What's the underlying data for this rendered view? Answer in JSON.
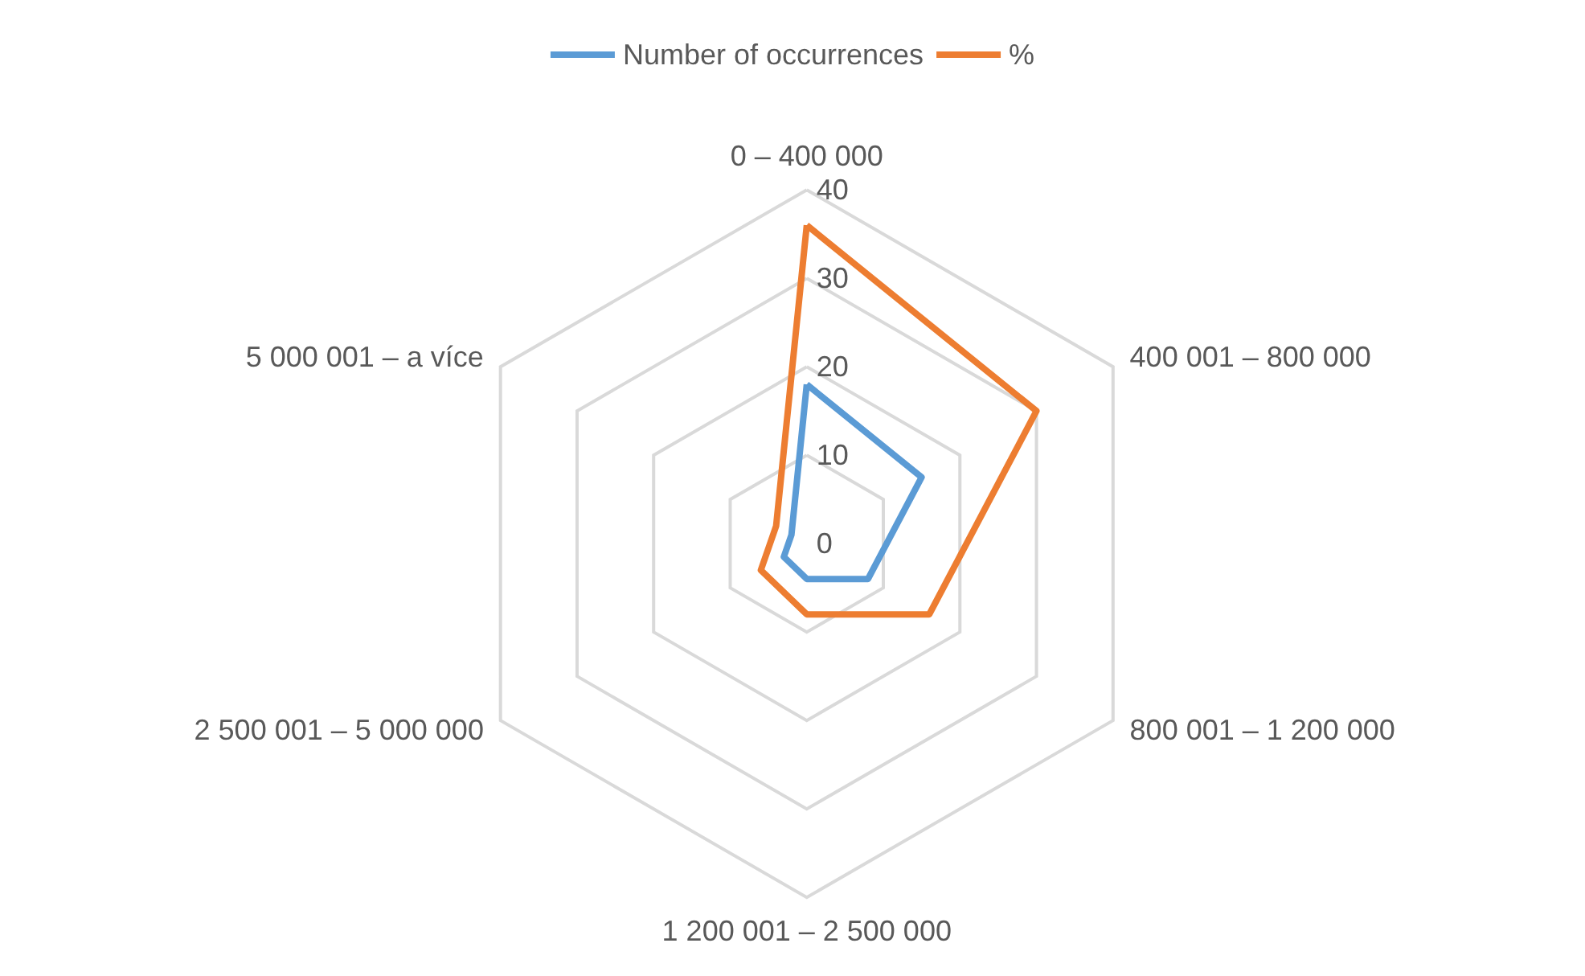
{
  "chart_data": {
    "type": "radar",
    "categories": [
      "0 – 400 000",
      "400 001 – 800 000",
      "800 001 – 1 200 000",
      "1 200 001 – 2 500 000",
      "2 500 001 – 5 000 000",
      "5 000 001 – a více"
    ],
    "series": [
      {
        "name": "Number of occurrences",
        "color": "#5b9bd5",
        "values": [
          18,
          15,
          8,
          4,
          3,
          2
        ]
      },
      {
        "name": "%",
        "color": "#ed7d31",
        "values": [
          36,
          30,
          16,
          8,
          6,
          4
        ]
      }
    ],
    "ylim": [
      0,
      40
    ],
    "yticks": [
      0,
      10,
      20,
      30,
      40
    ],
    "legend": "top",
    "marker": "none",
    "grid": true
  }
}
